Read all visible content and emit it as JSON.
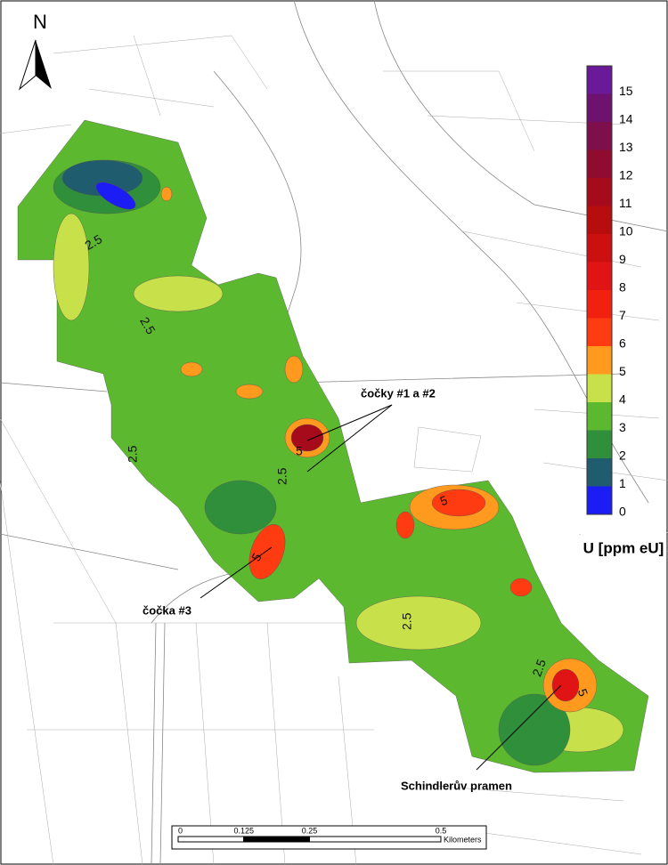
{
  "north_arrow": {
    "label": "N"
  },
  "legend": {
    "title": "U [ppm eU]",
    "ticks": [
      0,
      1,
      2,
      3,
      4,
      5,
      6,
      7,
      8,
      9,
      10,
      11,
      12,
      13,
      14,
      15
    ],
    "colors": [
      "#1c1cf5",
      "#1f5c6e",
      "#2f8f3a",
      "#5cb82e",
      "#c8e04a",
      "#ff9a1e",
      "#ff3b12",
      "#f2200f",
      "#e01414",
      "#cc1010",
      "#b80d0d",
      "#a50b1a",
      "#8f0c2e",
      "#7d0f4a",
      "#6e1270",
      "#6a1a98"
    ]
  },
  "annotations": [
    "čočky #1 a #2",
    "čočka #3",
    "Schindlerův pramen"
  ],
  "contour_labels": [
    "2.5",
    "2.5",
    "2.5",
    "2.5",
    "2.5",
    "2.5",
    "5",
    "5",
    "5",
    "5"
  ],
  "scale_bar": {
    "ticks": [
      0,
      0.125,
      0.25,
      0.5
    ],
    "unit": "Kilometers"
  }
}
